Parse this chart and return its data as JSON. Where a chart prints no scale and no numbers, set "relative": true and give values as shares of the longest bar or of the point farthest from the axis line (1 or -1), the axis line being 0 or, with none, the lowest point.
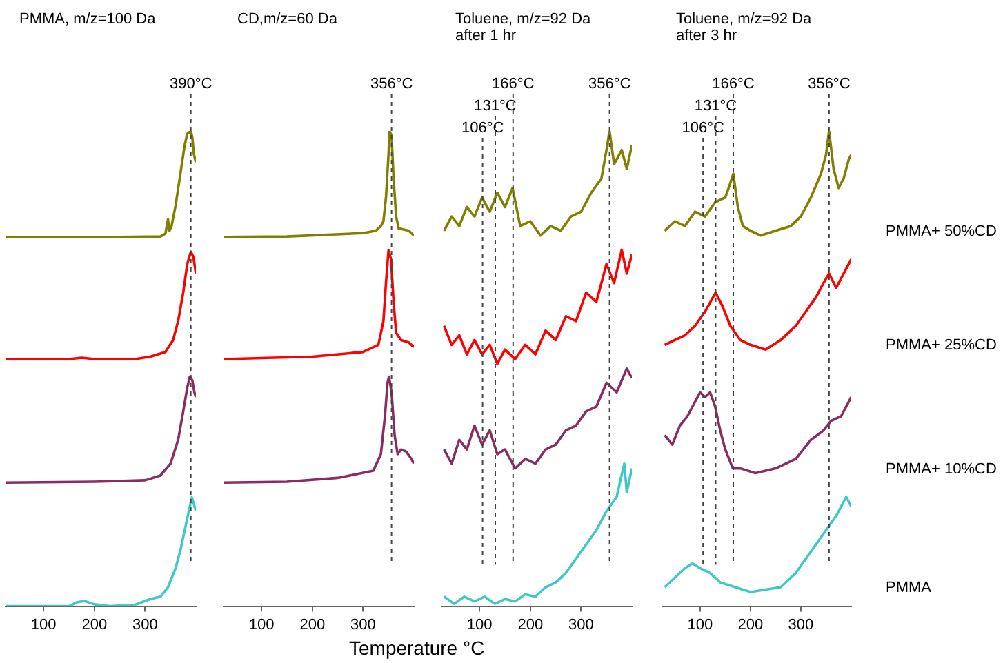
{
  "chart_data": [
    {
      "type": "line",
      "title": "PMMA, m/z=100 Da",
      "relative": true,
      "xlim": [
        25,
        400
      ],
      "xticks": [
        100,
        200,
        300
      ],
      "grid": false,
      "legend": false,
      "marker": "none",
      "ref_lines": [
        {
          "axis": "x",
          "value": 390,
          "label": "390°C",
          "line_style": "dashed"
        }
      ],
      "series": [
        {
          "color": "#808000",
          "x": [
            25,
            150,
            250,
            330,
            340,
            345,
            348,
            352,
            360,
            370,
            378,
            383,
            390,
            393,
            396,
            400
          ],
          "values": [
            0.777,
            0.777,
            0.777,
            0.778,
            0.784,
            0.814,
            0.79,
            0.8,
            0.843,
            0.914,
            0.971,
            0.994,
            1.0,
            0.986,
            0.951,
            0.934
          ]
        },
        {
          "color": "#ff0000",
          "x": [
            25,
            150,
            175,
            200,
            280,
            310,
            340,
            355,
            365,
            375,
            383,
            390,
            395,
            400
          ],
          "values": [
            0.52,
            0.52,
            0.523,
            0.52,
            0.52,
            0.525,
            0.535,
            0.56,
            0.6,
            0.66,
            0.72,
            0.746,
            0.735,
            0.7
          ]
        },
        {
          "color": "#8b2c5f",
          "x": [
            25,
            200,
            300,
            330,
            350,
            365,
            375,
            383,
            388,
            393,
            397,
            400
          ],
          "values": [
            0.26,
            0.262,
            0.265,
            0.275,
            0.3,
            0.35,
            0.41,
            0.46,
            0.483,
            0.475,
            0.45,
            0.44
          ]
        },
        {
          "color": "#40c8c8",
          "x": [
            25,
            150,
            165,
            180,
            200,
            230,
            280,
            310,
            330,
            345,
            360,
            370,
            380,
            388,
            392,
            396,
            400
          ],
          "values": [
            0,
            0,
            0.008,
            0.011,
            0.004,
            0,
            0.003,
            0.015,
            0.02,
            0.04,
            0.08,
            0.12,
            0.17,
            0.21,
            0.229,
            0.215,
            0.2
          ]
        }
      ]
    },
    {
      "type": "line",
      "title": "CD,m/z=60 Da",
      "xlabel": "Temperature °C",
      "relative": true,
      "xlim": [
        25,
        400
      ],
      "xticks": [
        100,
        200,
        300
      ],
      "grid": false,
      "legend": false,
      "marker": "none",
      "ref_lines": [
        {
          "axis": "x",
          "value": 356,
          "label": "356°C",
          "line_style": "dashed"
        }
      ],
      "series": [
        {
          "color": "#808000",
          "x": [
            25,
            150,
            300,
            325,
            335,
            340,
            345,
            350,
            352,
            356,
            360,
            365,
            370,
            390,
            400
          ],
          "values": [
            0.777,
            0.778,
            0.785,
            0.79,
            0.8,
            0.81,
            0.86,
            0.95,
            1.0,
            0.99,
            0.9,
            0.82,
            0.795,
            0.79,
            0.78
          ]
        },
        {
          "color": "#ff0000",
          "x": [
            25,
            200,
            300,
            330,
            340,
            345,
            350,
            355,
            360,
            365,
            375,
            390,
            400
          ],
          "values": [
            0.52,
            0.525,
            0.535,
            0.55,
            0.6,
            0.68,
            0.749,
            0.73,
            0.64,
            0.575,
            0.56,
            0.555,
            0.545
          ]
        },
        {
          "color": "#8b2c5f",
          "x": [
            25,
            150,
            250,
            320,
            335,
            343,
            348,
            351,
            356,
            362,
            368,
            375,
            385,
            395,
            400
          ],
          "values": [
            0.26,
            0.262,
            0.27,
            0.285,
            0.32,
            0.4,
            0.47,
            0.483,
            0.45,
            0.36,
            0.32,
            0.33,
            0.325,
            0.31,
            0.3
          ]
        }
      ]
    },
    {
      "type": "line",
      "title": "Toluene, m/z=92 Da",
      "subtitle": "after 1 hr",
      "relative": true,
      "xlim": [
        25,
        400
      ],
      "xticks": [
        100,
        200,
        300
      ],
      "grid": false,
      "legend": false,
      "marker": "none",
      "ref_lines": [
        {
          "axis": "x",
          "value": 106,
          "label": "106°C",
          "line_style": "dashed"
        },
        {
          "axis": "x",
          "value": 131,
          "label": "131°C",
          "line_style": "dashed"
        },
        {
          "axis": "x",
          "value": 166,
          "label": "166°C",
          "line_style": "dashed"
        },
        {
          "axis": "x",
          "value": 356,
          "label": "356°C",
          "line_style": "dashed"
        }
      ],
      "series": [
        {
          "color": "#808000",
          "x": [
            30,
            45,
            60,
            75,
            90,
            105,
            120,
            135,
            150,
            165,
            180,
            200,
            220,
            240,
            260,
            280,
            300,
            320,
            340,
            350,
            356,
            365,
            380,
            390,
            400
          ],
          "values": [
            0.79,
            0.82,
            0.8,
            0.84,
            0.82,
            0.86,
            0.83,
            0.87,
            0.84,
            0.88,
            0.8,
            0.81,
            0.78,
            0.8,
            0.79,
            0.82,
            0.83,
            0.87,
            0.9,
            0.96,
            1.0,
            0.93,
            0.96,
            0.92,
            0.97
          ]
        },
        {
          "color": "#ff0000",
          "x": [
            30,
            45,
            60,
            75,
            90,
            105,
            120,
            135,
            150,
            170,
            190,
            210,
            230,
            250,
            270,
            290,
            310,
            330,
            350,
            365,
            380,
            390,
            400
          ],
          "values": [
            0.59,
            0.55,
            0.57,
            0.53,
            0.56,
            0.53,
            0.55,
            0.51,
            0.54,
            0.52,
            0.55,
            0.53,
            0.58,
            0.56,
            0.61,
            0.6,
            0.66,
            0.64,
            0.72,
            0.68,
            0.75,
            0.7,
            0.74
          ]
        },
        {
          "color": "#8b2c5f",
          "x": [
            30,
            45,
            60,
            75,
            90,
            105,
            120,
            135,
            150,
            170,
            190,
            210,
            230,
            250,
            270,
            290,
            310,
            330,
            350,
            370,
            390,
            400
          ],
          "values": [
            0.33,
            0.3,
            0.35,
            0.33,
            0.38,
            0.34,
            0.37,
            0.32,
            0.33,
            0.29,
            0.31,
            0.3,
            0.33,
            0.34,
            0.37,
            0.38,
            0.41,
            0.42,
            0.47,
            0.45,
            0.5,
            0.48
          ]
        },
        {
          "color": "#40c8c8",
          "x": [
            30,
            50,
            70,
            90,
            110,
            130,
            150,
            170,
            190,
            210,
            230,
            250,
            270,
            290,
            310,
            330,
            350,
            370,
            385,
            390,
            400
          ],
          "values": [
            0.02,
            0.005,
            0.02,
            0.01,
            0.02,
            0.005,
            0.015,
            0.01,
            0.025,
            0.02,
            0.04,
            0.05,
            0.07,
            0.1,
            0.13,
            0.16,
            0.2,
            0.23,
            0.3,
            0.24,
            0.29
          ]
        }
      ]
    },
    {
      "type": "line",
      "title": "Toluene, m/z=92 Da",
      "subtitle": "after 3 hr",
      "relative": true,
      "xlim": [
        25,
        400
      ],
      "xticks": [
        100,
        200,
        300
      ],
      "grid": false,
      "legend": false,
      "marker": "none",
      "ref_lines": [
        {
          "axis": "x",
          "value": 106,
          "label": "106°C",
          "line_style": "dashed"
        },
        {
          "axis": "x",
          "value": 131,
          "label": "131°C",
          "line_style": "dashed"
        },
        {
          "axis": "x",
          "value": 166,
          "label": "166°C",
          "line_style": "dashed"
        },
        {
          "axis": "x",
          "value": 356,
          "label": "356°C",
          "line_style": "dashed"
        }
      ],
      "series": [
        {
          "name": "PMMA+ 50%CD",
          "color": "#808000",
          "x": [
            30,
            50,
            70,
            90,
            110,
            130,
            150,
            160,
            166,
            175,
            185,
            200,
            220,
            250,
            280,
            300,
            320,
            340,
            350,
            356,
            365,
            375,
            385,
            395,
            400
          ],
          "values": [
            0.79,
            0.81,
            0.8,
            0.83,
            0.82,
            0.85,
            0.86,
            0.89,
            0.91,
            0.84,
            0.8,
            0.79,
            0.78,
            0.79,
            0.8,
            0.82,
            0.86,
            0.91,
            0.95,
            1.0,
            0.92,
            0.88,
            0.9,
            0.94,
            0.95
          ]
        },
        {
          "name": "PMMA+ 25%CD",
          "color": "#ff0000",
          "x": [
            30,
            50,
            70,
            90,
            110,
            131,
            145,
            160,
            180,
            200,
            230,
            260,
            290,
            310,
            330,
            345,
            356,
            370,
            385,
            400
          ],
          "values": [
            0.55,
            0.56,
            0.57,
            0.59,
            0.62,
            0.66,
            0.63,
            0.59,
            0.56,
            0.55,
            0.54,
            0.56,
            0.59,
            0.62,
            0.65,
            0.68,
            0.7,
            0.67,
            0.7,
            0.73
          ]
        },
        {
          "name": "PMMA+ 10%CD",
          "color": "#8b2c5f",
          "x": [
            30,
            45,
            60,
            75,
            90,
            100,
            110,
            120,
            130,
            140,
            150,
            165,
            180,
            210,
            250,
            290,
            320,
            345,
            360,
            380,
            400
          ],
          "values": [
            0.36,
            0.34,
            0.38,
            0.4,
            0.43,
            0.45,
            0.44,
            0.45,
            0.42,
            0.37,
            0.33,
            0.29,
            0.29,
            0.28,
            0.29,
            0.31,
            0.35,
            0.37,
            0.39,
            0.4,
            0.44
          ]
        },
        {
          "name": "PMMA",
          "color": "#40c8c8",
          "x": [
            30,
            50,
            70,
            85,
            100,
            120,
            140,
            170,
            200,
            230,
            260,
            290,
            310,
            330,
            350,
            370,
            390,
            400
          ],
          "values": [
            0.04,
            0.06,
            0.08,
            0.09,
            0.08,
            0.07,
            0.05,
            0.04,
            0.03,
            0.035,
            0.04,
            0.07,
            0.1,
            0.13,
            0.16,
            0.19,
            0.23,
            0.21
          ]
        }
      ]
    }
  ]
}
